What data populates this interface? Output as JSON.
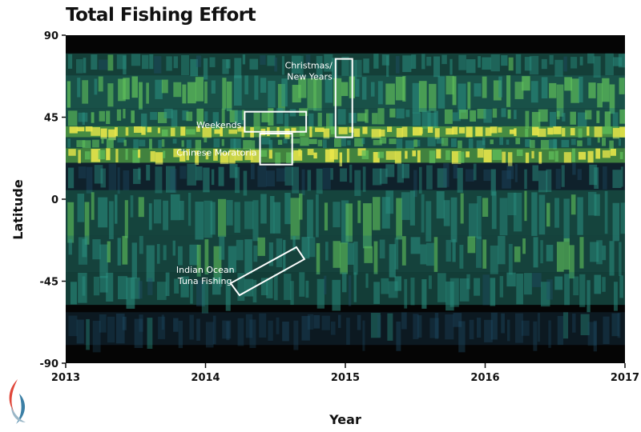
{
  "chart_data": {
    "type": "heatmap",
    "title": "Total Fishing Effort",
    "xlabel": "Year",
    "ylabel": "Latitude",
    "xlim": [
      2013,
      2017
    ],
    "ylim": [
      -90,
      90
    ],
    "xticks": [
      "2013",
      "2014",
      "2015",
      "2016",
      "2017"
    ],
    "yticks": [
      "90",
      "45",
      "0",
      "-45",
      "-90"
    ],
    "colors": {
      "background": "#050505",
      "low": "#1f4f6a",
      "mid": "#2a8f80",
      "high": "#5fbf5a",
      "peak": "#e8e64a"
    },
    "bands": [
      {
        "lat": [
          68,
          80
        ],
        "intensity": 0.35
      },
      {
        "lat": [
          50,
          68
        ],
        "intensity": 0.6
      },
      {
        "lat": [
          40,
          50
        ],
        "intensity": 0.55
      },
      {
        "lat": [
          34,
          40
        ],
        "intensity": 0.95
      },
      {
        "lat": [
          28,
          34
        ],
        "intensity": 0.5
      },
      {
        "lat": [
          20,
          28
        ],
        "intensity": 0.85
      },
      {
        "lat": [
          5,
          20
        ],
        "intensity": 0.25
      },
      {
        "lat": [
          -20,
          5
        ],
        "intensity": 0.42
      },
      {
        "lat": [
          -40,
          -20
        ],
        "intensity": 0.4
      },
      {
        "lat": [
          -58,
          -40
        ],
        "intensity": 0.32
      },
      {
        "lat": [
          -80,
          -62
        ],
        "intensity": 0.06
      }
    ],
    "annotations": [
      {
        "lines": [
          "Christmas/",
          "New Years"
        ],
        "box_years": [
          2014.93,
          2015.05
        ],
        "box_lats": [
          34,
          77
        ]
      },
      {
        "lines": [
          "Weekends"
        ],
        "box_years": [
          2014.28,
          2014.72
        ],
        "box_lats": [
          37,
          48
        ]
      },
      {
        "lines": [
          "Chinese Moratoria"
        ],
        "box_years": [
          2014.39,
          2014.62
        ],
        "box_lats": [
          19,
          36
        ]
      },
      {
        "lines": [
          "Indian Ocean",
          "Tuna Fishing"
        ],
        "box_years": [
          2014.18,
          2014.65
        ],
        "box_lats": [
          -47,
          -25
        ],
        "rotated": true
      }
    ]
  }
}
